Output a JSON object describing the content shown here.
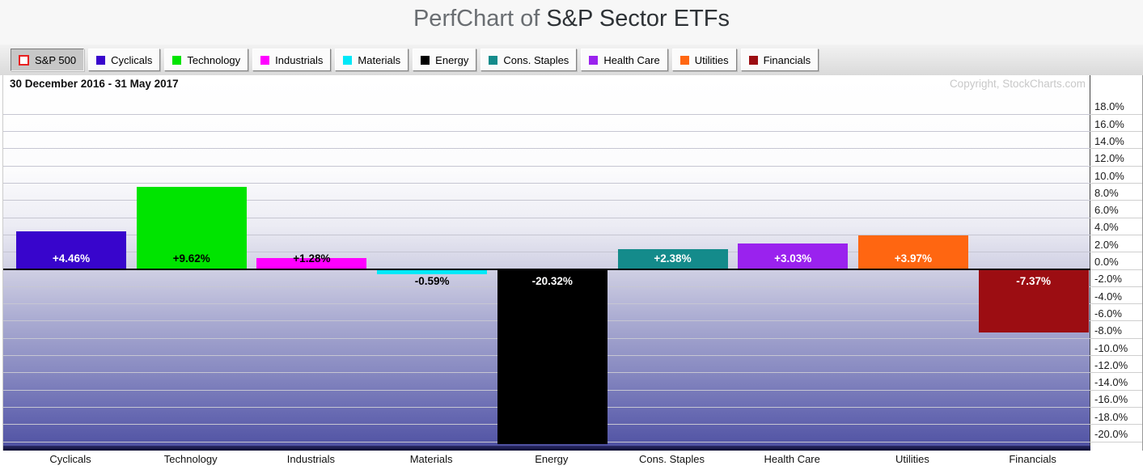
{
  "header": {
    "title_light": "PerfChart of",
    "title_main": "S&P Sector ETFs"
  },
  "legend": {
    "items": [
      {
        "label": "S&P 500",
        "slug": "sp500",
        "swatch": "outline",
        "color": "#ffffff",
        "selected": true
      },
      {
        "label": "Cyclicals",
        "slug": "cyclicals",
        "swatch": "filled",
        "color": "#3805cc",
        "selected": false
      },
      {
        "label": "Technology",
        "slug": "technology",
        "swatch": "filled",
        "color": "#00e400",
        "selected": false
      },
      {
        "label": "Industrials",
        "slug": "industrials",
        "swatch": "filled",
        "color": "#ff00ff",
        "selected": false
      },
      {
        "label": "Materials",
        "slug": "materials",
        "swatch": "filled",
        "color": "#00e8f8",
        "selected": false
      },
      {
        "label": "Energy",
        "slug": "energy",
        "swatch": "filled",
        "color": "#000000",
        "selected": false
      },
      {
        "label": "Cons. Staples",
        "slug": "cons-staples",
        "swatch": "filled",
        "color": "#148b8b",
        "selected": false
      },
      {
        "label": "Health Care",
        "slug": "health-care",
        "swatch": "filled",
        "color": "#9a22ee",
        "selected": false
      },
      {
        "label": "Utilities",
        "slug": "utilities",
        "swatch": "filled",
        "color": "#ff6611",
        "selected": false
      },
      {
        "label": "Financials",
        "slug": "financials",
        "swatch": "filled",
        "color": "#9c0d12",
        "selected": false
      }
    ]
  },
  "chart": {
    "date_range": "30 December 2016 - 31 May 2017",
    "copyright": "Copyright, StockCharts.com"
  },
  "chart_data": {
    "type": "bar",
    "title": "PerfChart of S&P Sector ETFs",
    "subtitle": "30 December 2016 - 31 May 2017",
    "categories": [
      "Cyclicals",
      "Technology",
      "Industrials",
      "Materials",
      "Energy",
      "Cons. Staples",
      "Health Care",
      "Utilities",
      "Financials"
    ],
    "values": [
      4.46,
      9.62,
      1.28,
      -0.59,
      -20.32,
      2.38,
      3.03,
      3.97,
      -7.37
    ],
    "value_labels": [
      "+4.46%",
      "+9.62%",
      "+1.28%",
      "-0.59%",
      "-20.32%",
      "+2.38%",
      "+3.03%",
      "+3.97%",
      "-7.37%"
    ],
    "bar_colors": [
      "#3805cc",
      "#00e400",
      "#ff00ff",
      "#00e8f8",
      "#000000",
      "#148b8b",
      "#9a22ee",
      "#ff6611",
      "#9c0d12"
    ],
    "label_text_colors": [
      "#ffffff",
      "#000000",
      "#000000",
      "#000000",
      "#ffffff",
      "#ffffff",
      "#ffffff",
      "#ffffff",
      "#ffffff"
    ],
    "xlabel": "",
    "ylabel": "",
    "ylim": [
      -21,
      22.5
    ],
    "yticks": [
      18,
      16,
      14,
      12,
      10,
      8,
      6,
      4,
      2,
      0,
      -2,
      -4,
      -6,
      -8,
      -10,
      -12,
      -14,
      -16,
      -18,
      -20
    ],
    "ytick_labels": [
      "18.0%",
      "16.0%",
      "14.0%",
      "12.0%",
      "10.0%",
      "8.0%",
      "6.0%",
      "4.0%",
      "2.0%",
      "0.0%",
      "-2.0%",
      "-4.0%",
      "-6.0%",
      "-8.0%",
      "-10.0%",
      "-12.0%",
      "-14.0%",
      "-16.0%",
      "-18.0%",
      "-20.0%"
    ],
    "grid": true,
    "legend_position": "top",
    "zero_line": true
  }
}
